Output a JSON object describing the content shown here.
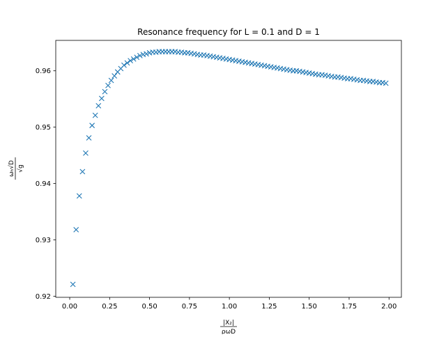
{
  "chart_data": {
    "type": "scatter",
    "title": "Resonance frequency for L = 0.1 and D = 1",
    "marker": "x",
    "color": "#1f77b4",
    "grid": false,
    "xlim": [
      -0.0875,
      2.0775
    ],
    "ylim": [
      0.9198,
      0.9654
    ],
    "xticks": [
      0.0,
      0.25,
      0.5,
      0.75,
      1.0,
      1.25,
      1.5,
      1.75,
      2.0
    ],
    "xtick_labels": [
      "0.00",
      "0.25",
      "0.50",
      "0.75",
      "1.00",
      "1.25",
      "1.50",
      "1.75",
      "2.00"
    ],
    "yticks": [
      0.92,
      0.93,
      0.94,
      0.95,
      0.96
    ],
    "ytick_labels": [
      "0.92",
      "0.93",
      "0.94",
      "0.95",
      "0.96"
    ],
    "xlabel": {
      "numerator": "|X₂|",
      "denominator": "ρωD"
    },
    "ylabel": {
      "numerator": "ωₕ√D",
      "denominator": "√g"
    },
    "x": [
      0.02,
      0.04,
      0.06,
      0.08,
      0.1,
      0.12,
      0.14,
      0.16,
      0.18,
      0.2,
      0.22,
      0.24,
      0.26,
      0.28,
      0.3,
      0.32,
      0.34,
      0.36,
      0.38,
      0.4,
      0.42,
      0.44,
      0.46,
      0.48,
      0.5,
      0.52,
      0.54,
      0.56,
      0.58,
      0.6,
      0.62,
      0.64,
      0.66,
      0.68,
      0.7,
      0.72,
      0.74,
      0.76,
      0.78,
      0.8,
      0.82,
      0.84,
      0.86,
      0.88,
      0.9,
      0.92,
      0.94,
      0.96,
      0.98,
      1.0,
      1.02,
      1.04,
      1.06,
      1.08,
      1.1,
      1.12,
      1.14,
      1.16,
      1.18,
      1.2,
      1.22,
      1.24,
      1.26,
      1.28,
      1.3,
      1.32,
      1.34,
      1.36,
      1.38,
      1.4,
      1.42,
      1.44,
      1.46,
      1.48,
      1.5,
      1.52,
      1.54,
      1.56,
      1.58,
      1.6,
      1.62,
      1.64,
      1.66,
      1.68,
      1.7,
      1.72,
      1.74,
      1.76,
      1.78,
      1.8,
      1.82,
      1.84,
      1.86,
      1.88,
      1.9,
      1.92,
      1.94,
      1.96,
      1.98
    ],
    "y": [
      0.9221,
      0.9318,
      0.9378,
      0.9421,
      0.9454,
      0.9481,
      0.9503,
      0.9521,
      0.9538,
      0.9551,
      0.9563,
      0.9574,
      0.9583,
      0.9591,
      0.9598,
      0.9604,
      0.961,
      0.9614,
      0.9618,
      0.9621,
      0.9624,
      0.9627,
      0.9629,
      0.963,
      0.9632,
      0.9633,
      0.9633,
      0.9634,
      0.9634,
      0.9634,
      0.9634,
      0.9634,
      0.9634,
      0.9633,
      0.9633,
      0.9632,
      0.9632,
      0.9631,
      0.963,
      0.9629,
      0.9628,
      0.9628,
      0.9627,
      0.9626,
      0.9625,
      0.9624,
      0.9623,
      0.9622,
      0.9621,
      0.962,
      0.9619,
      0.9618,
      0.9617,
      0.9616,
      0.9615,
      0.9614,
      0.9613,
      0.9612,
      0.9611,
      0.961,
      0.9609,
      0.9608,
      0.9607,
      0.9606,
      0.9605,
      0.9604,
      0.9603,
      0.9602,
      0.9601,
      0.96,
      0.96,
      0.9599,
      0.9598,
      0.9597,
      0.9596,
      0.9595,
      0.9594,
      0.9593,
      0.9593,
      0.9592,
      0.9591,
      0.959,
      0.9589,
      0.9589,
      0.9588,
      0.9587,
      0.9586,
      0.9586,
      0.9585,
      0.9584,
      0.9583,
      0.9583,
      0.9582,
      0.9581,
      0.9581,
      0.958,
      0.9579,
      0.9579,
      0.9578
    ]
  }
}
